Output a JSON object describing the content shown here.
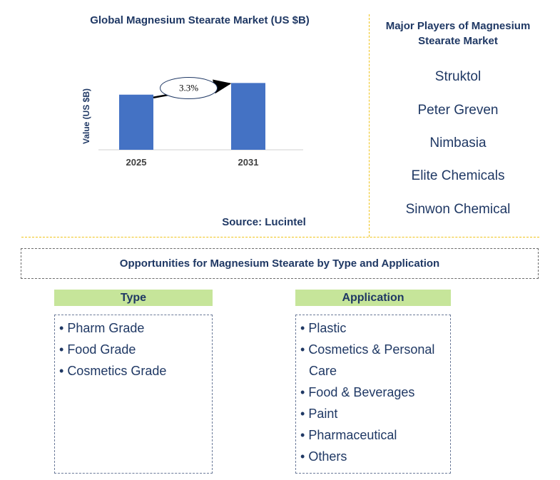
{
  "chart_data": {
    "type": "bar",
    "title": "Global Magnesium Stearate Market (US $B)",
    "ylabel": "Value (US $B)",
    "xlabel": "",
    "categories": [
      "2025",
      "2031"
    ],
    "values": [
      0.85,
      1.03
    ],
    "ylim": [
      0,
      1.1
    ],
    "grid": false,
    "bar_color": "#4472c4",
    "annotation": "3.3%"
  },
  "source": "Source: Lucintel",
  "players": {
    "title": "Major Players of Magnesium Stearate Market",
    "items": [
      "Struktol",
      "Peter Greven",
      "Nimbasia",
      "Elite Chemicals",
      "Sinwon Chemical"
    ]
  },
  "opportunities": {
    "title": "Opportunities for Magnesium Stearate by Type and Application",
    "type_header": "Type",
    "type_items": [
      "Pharm Grade",
      "Food Grade",
      "Cosmetics Grade"
    ],
    "application_header": "Application",
    "application_items": [
      "Plastic",
      "Cosmetics & Personal Care",
      "Food & Beverages",
      "Paint",
      "Pharmaceutical",
      "Others"
    ]
  },
  "colors": {
    "title_text": "#1f3864",
    "separator": "#f0c419",
    "header_fill": "#c6e59a"
  }
}
